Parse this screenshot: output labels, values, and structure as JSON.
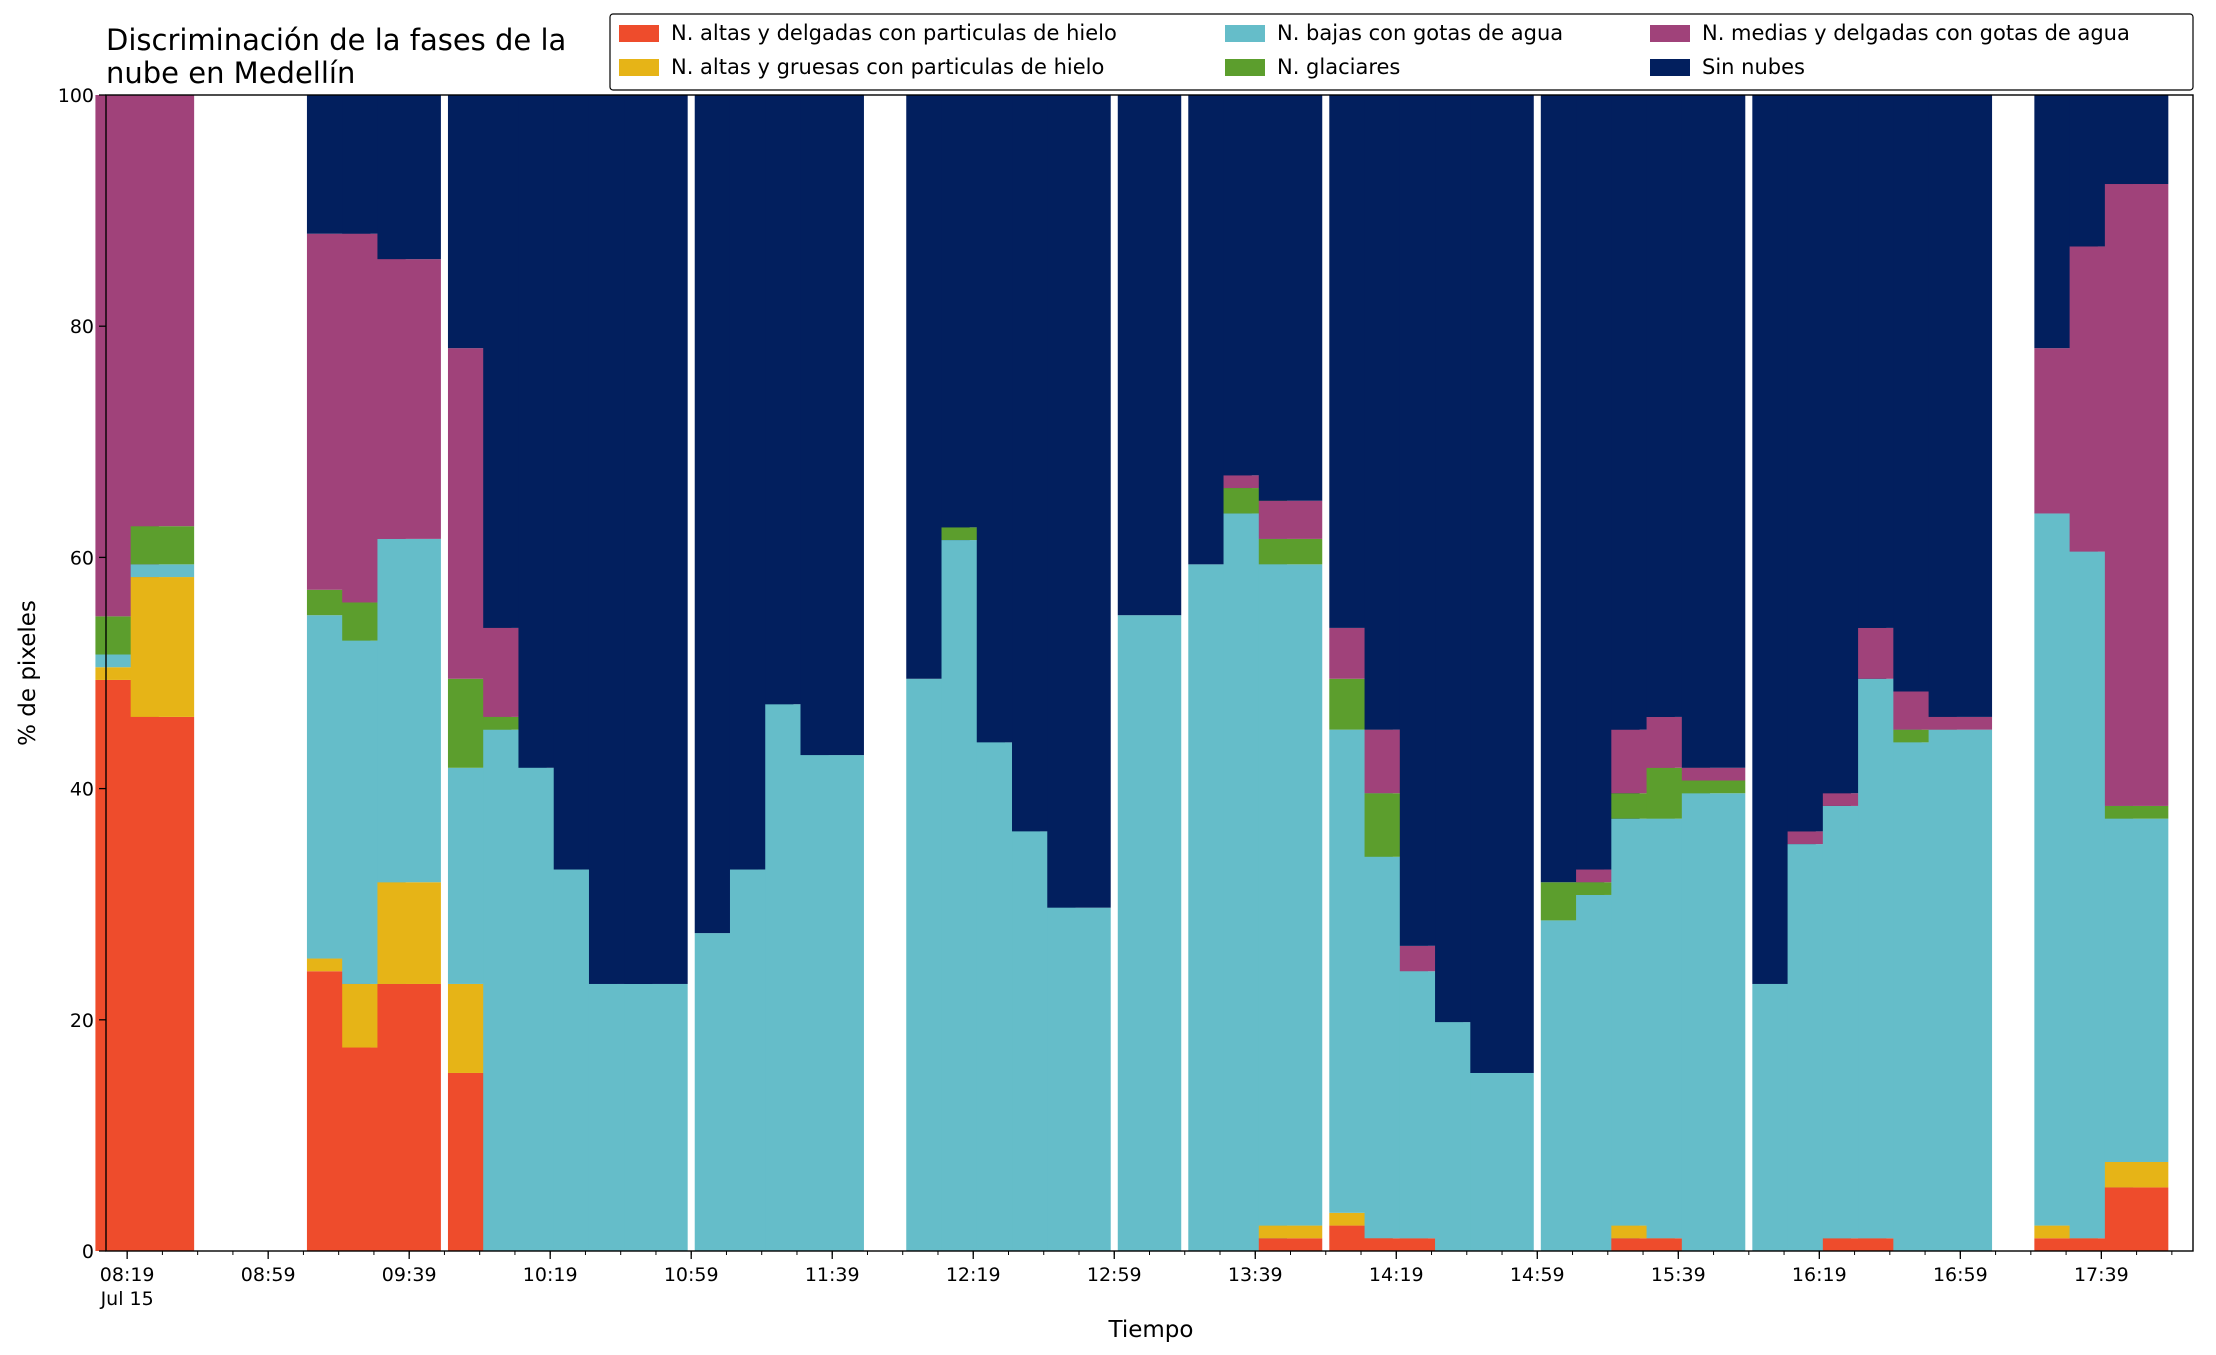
{
  "chart_data": {
    "type": "bar",
    "stacked": true,
    "title_lines": [
      "Discriminación de la fases de la",
      "nube en Medellín"
    ],
    "xlabel": "Tiempo",
    "ylabel": "% de pixeles",
    "ylim": [
      0,
      100
    ],
    "yticks": [
      0,
      20,
      40,
      60,
      80,
      100
    ],
    "grid": false,
    "legend_position": "top-right",
    "x_axis": {
      "start_time": "08:19",
      "end_time": "17:59",
      "major_ticks": [
        "08:19",
        "08:59",
        "09:39",
        "10:19",
        "10:59",
        "11:39",
        "12:19",
        "12:59",
        "13:39",
        "14:19",
        "14:59",
        "15:39",
        "16:19",
        "16:59",
        "17:39"
      ],
      "date_label": "Jul 15",
      "minor_tick_interval_minutes": 10
    },
    "times": [
      "08:19",
      "08:29",
      "09:09",
      "09:19",
      "09:29",
      "09:39",
      "09:59",
      "10:09",
      "10:19",
      "10:29",
      "10:39",
      "10:49",
      "11:09",
      "11:19",
      "11:29",
      "11:39",
      "12:09",
      "12:19",
      "12:29",
      "12:39",
      "12:49",
      "13:09",
      "13:29",
      "13:39",
      "13:49",
      "14:09",
      "14:19",
      "14:29",
      "14:39",
      "14:49",
      "15:09",
      "15:19",
      "15:29",
      "15:39",
      "15:49",
      "16:09",
      "16:19",
      "16:29",
      "16:39",
      "16:49",
      "16:59",
      "17:29",
      "17:39",
      "17:49"
    ],
    "series": [
      {
        "name": "N. altas y delgadas con particulas de hielo",
        "color": "#ee4c2c",
        "values": [
          49.4,
          46.2,
          0,
          24.2,
          17.6,
          23.1,
          15.4,
          0,
          0,
          0,
          0,
          0,
          0,
          0,
          0,
          0,
          0,
          0,
          0,
          0,
          0,
          0,
          0,
          0,
          1.1,
          2.2,
          1.1,
          1.1,
          0,
          0,
          0,
          0,
          1.1,
          1.1,
          0,
          0,
          0,
          1.1,
          1.1,
          0,
          0,
          1.1,
          1.1,
          5.5
        ]
      },
      {
        "name": "N. altas y gruesas con particulas de hielo",
        "color": "#e6b417",
        "values": [
          1.1,
          12.1,
          0,
          1.1,
          5.5,
          8.8,
          7.7,
          0,
          0,
          0,
          0,
          0,
          0,
          0,
          0,
          0,
          0,
          0,
          0,
          0,
          0,
          0,
          0,
          0,
          1.1,
          1.1,
          0,
          0,
          0,
          0,
          0,
          0,
          1.1,
          0,
          0,
          0,
          0,
          0,
          0,
          0,
          0,
          1.1,
          0,
          2.2
        ]
      },
      {
        "name": "N. bajas con gotas de agua",
        "color": "#65bdc9",
        "values": [
          1.1,
          1.1,
          0,
          29.7,
          29.7,
          29.7,
          18.7,
          45.1,
          41.8,
          33.0,
          23.1,
          23.1,
          27.5,
          33.0,
          47.3,
          42.9,
          49.5,
          61.5,
          44.0,
          36.3,
          29.7,
          55.0,
          59.4,
          63.8,
          57.2,
          41.8,
          33.0,
          23.1,
          19.8,
          15.4,
          28.6,
          30.8,
          35.2,
          36.3,
          39.6,
          23.1,
          35.2,
          37.4,
          48.4,
          44.0,
          45.1,
          61.6,
          59.4,
          29.7
        ]
      },
      {
        "name": "N. glaciares",
        "color": "#5c9e2d",
        "values": [
          3.3,
          3.3,
          0,
          2.2,
          3.3,
          0,
          7.7,
          1.1,
          0,
          0,
          0,
          0,
          0,
          0,
          0,
          0,
          0,
          1.1,
          0,
          0,
          0,
          0,
          0,
          2.2,
          2.2,
          4.4,
          5.5,
          0,
          0,
          0,
          3.3,
          1.1,
          2.2,
          4.4,
          1.1,
          0,
          0,
          0,
          0,
          1.1,
          0,
          0,
          0,
          1.1
        ]
      },
      {
        "name": "N. medias y delgadas con gotas de agua",
        "color": "#a0427a",
        "values": [
          45.1,
          37.3,
          0,
          30.8,
          31.9,
          24.2,
          28.6,
          7.7,
          0,
          0,
          0,
          0,
          0,
          0,
          0,
          0,
          0,
          0,
          0,
          0,
          0,
          0,
          0,
          1.1,
          3.3,
          4.4,
          5.5,
          2.2,
          0,
          0,
          0,
          1.1,
          5.5,
          4.4,
          1.1,
          0,
          1.1,
          1.1,
          4.4,
          3.3,
          1.1,
          14.3,
          26.4,
          53.8
        ]
      },
      {
        "name": "Sin nubes",
        "color": "#021f5e",
        "values": [
          0,
          0,
          0,
          12.0,
          12.0,
          14.2,
          21.9,
          46.1,
          58.2,
          67.0,
          76.9,
          76.9,
          72.5,
          67.0,
          52.7,
          57.1,
          50.5,
          37.4,
          56.0,
          63.7,
          70.3,
          45.0,
          40.6,
          32.9,
          35.1,
          46.1,
          54.9,
          73.6,
          80.2,
          84.6,
          68.1,
          67.0,
          54.9,
          53.8,
          58.2,
          76.9,
          63.7,
          60.4,
          46.1,
          51.6,
          53.8,
          21.9,
          13.1,
          7.7
        ]
      }
    ]
  }
}
